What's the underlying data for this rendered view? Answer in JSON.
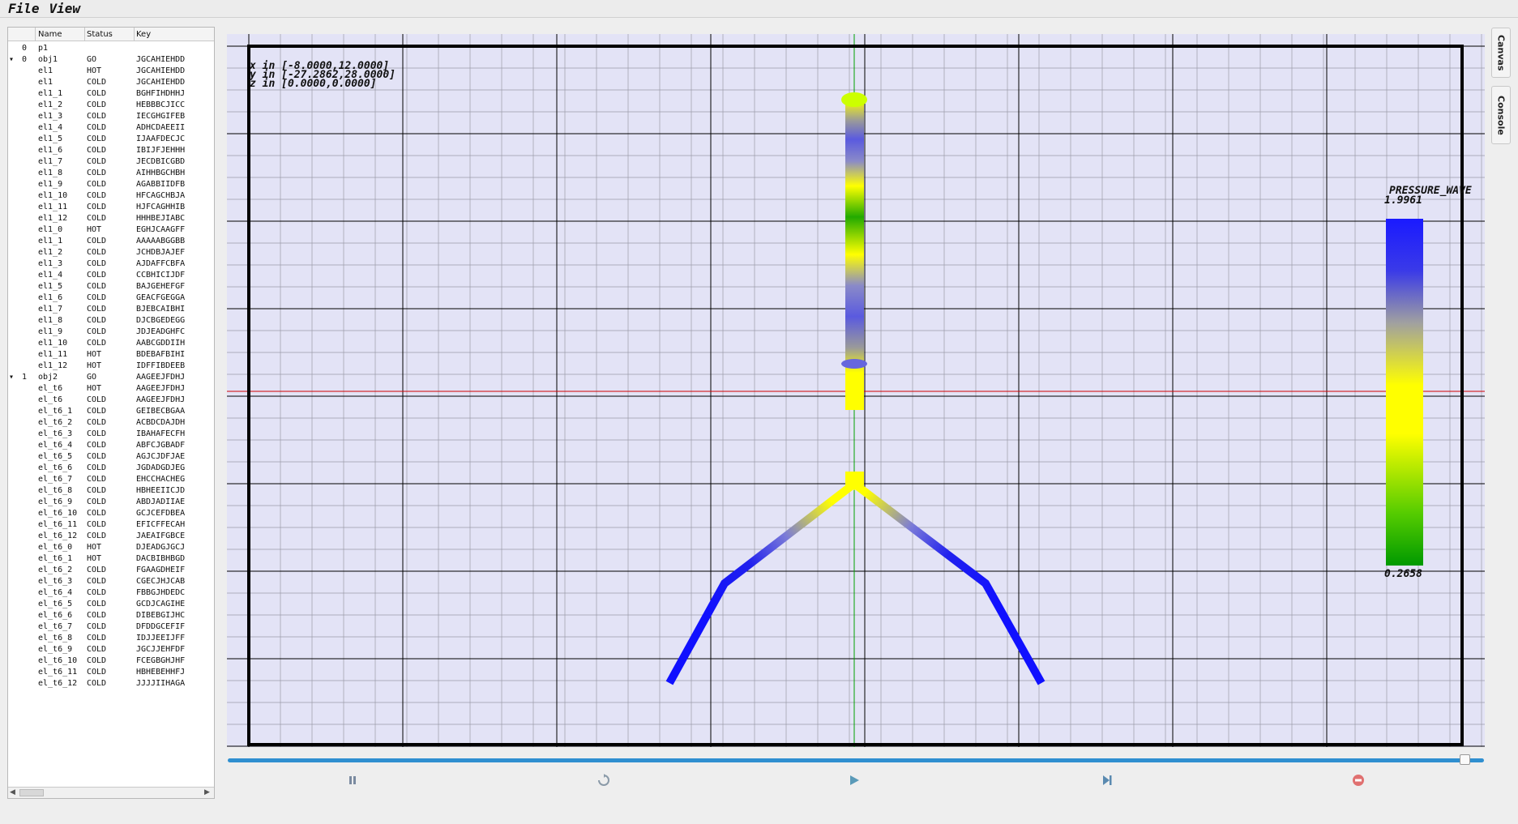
{
  "menu": {
    "file": "File",
    "view": "View"
  },
  "tree": {
    "columns": {
      "name": "Name",
      "status": "Status",
      "key": "Key"
    },
    "rows": [
      {
        "expander": "",
        "index": "0",
        "name": "p1",
        "status": "",
        "key": ""
      },
      {
        "expander": "▾",
        "index": "0",
        "name": "obj1",
        "status": "GO",
        "key": "JGCAHIEHDD"
      },
      {
        "expander": "",
        "index": "",
        "name": "el1",
        "status": "HOT",
        "key": "JGCAHIEHDD"
      },
      {
        "expander": "",
        "index": "",
        "name": "el1",
        "status": "COLD",
        "key": "JGCAHIEHDD"
      },
      {
        "expander": "",
        "index": "",
        "name": "el1_1",
        "status": "COLD",
        "key": "BGHFIHDHHJ"
      },
      {
        "expander": "",
        "index": "",
        "name": "el1_2",
        "status": "COLD",
        "key": "HEBBBCJICC"
      },
      {
        "expander": "",
        "index": "",
        "name": "el1_3",
        "status": "COLD",
        "key": "IECGHGIFEB"
      },
      {
        "expander": "",
        "index": "",
        "name": "el1_4",
        "status": "COLD",
        "key": "ADHCDAEEII"
      },
      {
        "expander": "",
        "index": "",
        "name": "el1_5",
        "status": "COLD",
        "key": "IJAAFDECJC"
      },
      {
        "expander": "",
        "index": "",
        "name": "el1_6",
        "status": "COLD",
        "key": "IBIJFJEHHH"
      },
      {
        "expander": "",
        "index": "",
        "name": "el1_7",
        "status": "COLD",
        "key": "JECDBICGBD"
      },
      {
        "expander": "",
        "index": "",
        "name": "el1_8",
        "status": "COLD",
        "key": "AIHHBGCHBH"
      },
      {
        "expander": "",
        "index": "",
        "name": "el1_9",
        "status": "COLD",
        "key": "AGABBIIDFB"
      },
      {
        "expander": "",
        "index": "",
        "name": "el1_10",
        "status": "COLD",
        "key": "HFCAGCHBJA"
      },
      {
        "expander": "",
        "index": "",
        "name": "el1_11",
        "status": "COLD",
        "key": "HJFCAGHHIB"
      },
      {
        "expander": "",
        "index": "",
        "name": "el1_12",
        "status": "COLD",
        "key": "HHHBEJIABC"
      },
      {
        "expander": "",
        "index": "",
        "name": "el1_0",
        "status": "HOT",
        "key": "EGHJCAAGFF"
      },
      {
        "expander": "",
        "index": "",
        "name": "el1_1",
        "status": "COLD",
        "key": "AAAAABGGBB"
      },
      {
        "expander": "",
        "index": "",
        "name": "el1_2",
        "status": "COLD",
        "key": "JCHDBJAJEF"
      },
      {
        "expander": "",
        "index": "",
        "name": "el1_3",
        "status": "COLD",
        "key": "AJDAFFCBFA"
      },
      {
        "expander": "",
        "index": "",
        "name": "el1_4",
        "status": "COLD",
        "key": "CCBHICIJDF"
      },
      {
        "expander": "",
        "index": "",
        "name": "el1_5",
        "status": "COLD",
        "key": "BAJGEHEFGF"
      },
      {
        "expander": "",
        "index": "",
        "name": "el1_6",
        "status": "COLD",
        "key": "GEACFGEGGA"
      },
      {
        "expander": "",
        "index": "",
        "name": "el1_7",
        "status": "COLD",
        "key": "BJEBCAIBHI"
      },
      {
        "expander": "",
        "index": "",
        "name": "el1_8",
        "status": "COLD",
        "key": "DJCBGEDEGG"
      },
      {
        "expander": "",
        "index": "",
        "name": "el1_9",
        "status": "COLD",
        "key": "JDJEADGHFC"
      },
      {
        "expander": "",
        "index": "",
        "name": "el1_10",
        "status": "COLD",
        "key": "AABCGDDIIH"
      },
      {
        "expander": "",
        "index": "",
        "name": "el1_11",
        "status": "HOT",
        "key": "BDEBAFBIHI"
      },
      {
        "expander": "",
        "index": "",
        "name": "el1_12",
        "status": "HOT",
        "key": "IDFFIBDEEB"
      },
      {
        "expander": "▾",
        "index": "1",
        "name": "obj2",
        "status": "GO",
        "key": "AAGEEJFDHJ"
      },
      {
        "expander": "",
        "index": "",
        "name": "el_t6",
        "status": "HOT",
        "key": "AAGEEJFDHJ"
      },
      {
        "expander": "",
        "index": "",
        "name": "el_t6",
        "status": "COLD",
        "key": "AAGEEJFDHJ"
      },
      {
        "expander": "",
        "index": "",
        "name": "el_t6_1",
        "status": "COLD",
        "key": "GEIBECBGAA"
      },
      {
        "expander": "",
        "index": "",
        "name": "el_t6_2",
        "status": "COLD",
        "key": "ACBDCDAJDH"
      },
      {
        "expander": "",
        "index": "",
        "name": "el_t6_3",
        "status": "COLD",
        "key": "IBAHAFECFH"
      },
      {
        "expander": "",
        "index": "",
        "name": "el_t6_4",
        "status": "COLD",
        "key": "ABFCJGBADF"
      },
      {
        "expander": "",
        "index": "",
        "name": "el_t6_5",
        "status": "COLD",
        "key": "AGJCJDFJAE"
      },
      {
        "expander": "",
        "index": "",
        "name": "el_t6_6",
        "status": "COLD",
        "key": "JGDADGDJEG"
      },
      {
        "expander": "",
        "index": "",
        "name": "el_t6_7",
        "status": "COLD",
        "key": "EHCCHACHEG"
      },
      {
        "expander": "",
        "index": "",
        "name": "el_t6_8",
        "status": "COLD",
        "key": "HBHEEIICJD"
      },
      {
        "expander": "",
        "index": "",
        "name": "el_t6_9",
        "status": "COLD",
        "key": "ABDJADIIAE"
      },
      {
        "expander": "",
        "index": "",
        "name": "el_t6_10",
        "status": "COLD",
        "key": "GCJCEFDBEA"
      },
      {
        "expander": "",
        "index": "",
        "name": "el_t6_11",
        "status": "COLD",
        "key": "EFICFFECAH"
      },
      {
        "expander": "",
        "index": "",
        "name": "el_t6_12",
        "status": "COLD",
        "key": "JAEAIFGBCE"
      },
      {
        "expander": "",
        "index": "",
        "name": "el_t6_0",
        "status": "HOT",
        "key": "DJEADGJGCJ"
      },
      {
        "expander": "",
        "index": "",
        "name": "el_t6_1",
        "status": "HOT",
        "key": "DACBIBHBGD"
      },
      {
        "expander": "",
        "index": "",
        "name": "el_t6_2",
        "status": "COLD",
        "key": "FGAAGDHEIF"
      },
      {
        "expander": "",
        "index": "",
        "name": "el_t6_3",
        "status": "COLD",
        "key": "CGECJHJCAB"
      },
      {
        "expander": "",
        "index": "",
        "name": "el_t6_4",
        "status": "COLD",
        "key": "FBBGJHDEDC"
      },
      {
        "expander": "",
        "index": "",
        "name": "el_t6_5",
        "status": "COLD",
        "key": "GCDJCAGIHE"
      },
      {
        "expander": "",
        "index": "",
        "name": "el_t6_6",
        "status": "COLD",
        "key": "DIBEBGIJHC"
      },
      {
        "expander": "",
        "index": "",
        "name": "el_t6_7",
        "status": "COLD",
        "key": "DFDDGCEFIF"
      },
      {
        "expander": "",
        "index": "",
        "name": "el_t6_8",
        "status": "COLD",
        "key": "IDJJEEIJFF"
      },
      {
        "expander": "",
        "index": "",
        "name": "el_t6_9",
        "status": "COLD",
        "key": "JGCJJEHFDF"
      },
      {
        "expander": "",
        "index": "",
        "name": "el_t6_10",
        "status": "COLD",
        "key": "FCEGBGHJHF"
      },
      {
        "expander": "",
        "index": "",
        "name": "el_t6_11",
        "status": "COLD",
        "key": "HBHEBEHHFJ"
      },
      {
        "expander": "",
        "index": "",
        "name": "el_t6_12",
        "status": "COLD",
        "key": "JJJJIIHAGA"
      }
    ]
  },
  "canvas": {
    "ranges": {
      "x": "x in [-8.0000,12.0000]",
      "y": "y in [-27.2862,28.0000]",
      "z": "z in [0.0000,0.0000]"
    },
    "colorbar": {
      "title": "PRESSURE_WAVE",
      "max": "1.9961",
      "min": "0.2658",
      "colors": {
        "high": "#1a1aff",
        "mid_gray": "#a0a0a0",
        "yellow": "#ffff00",
        "low": "#009900"
      }
    },
    "colors": {
      "background": "#e3e3f6",
      "grid_minor": "#9a9aa8",
      "grid_major": "#000000",
      "axis_x": "#d00000",
      "axis_y": "#00a000"
    }
  },
  "controls": {
    "pause_icon": "pause-icon",
    "refresh_icon": "refresh-icon",
    "play_icon": "play-icon",
    "step_icon": "skip-forward-icon",
    "stop_icon": "stop-icon",
    "progress": 0.99
  },
  "side_tabs": {
    "canvas": "Canvas",
    "console": "Console"
  }
}
